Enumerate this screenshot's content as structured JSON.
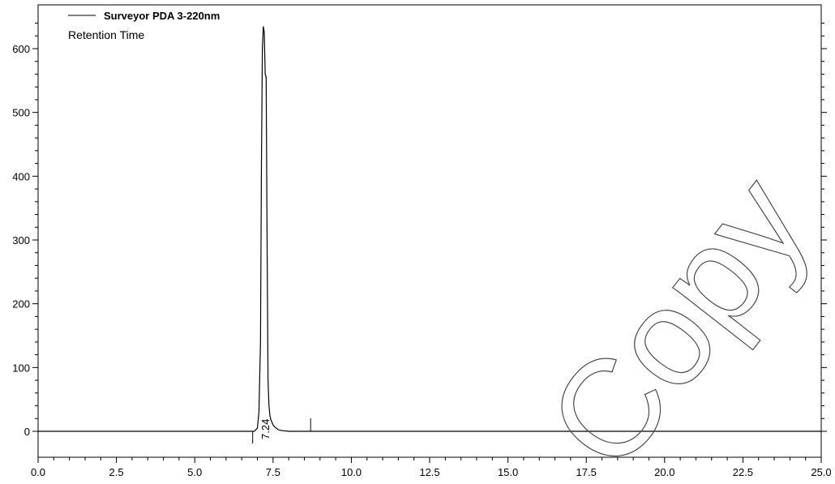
{
  "chart_data": {
    "type": "line",
    "title": "",
    "legend": {
      "entries": [
        "Surveyor PDA 3-220nm"
      ],
      "placement": "top-left"
    },
    "subtitle": "Retention Time",
    "xlabel": "",
    "ylabel": "",
    "xlim": [
      0.0,
      25.0
    ],
    "ylim": [
      -20,
      660
    ],
    "xticks": [
      0.0,
      2.5,
      5.0,
      7.5,
      10.0,
      12.5,
      15.0,
      17.5,
      20.0,
      22.5,
      25.0
    ],
    "xtick_labels": [
      "0.0",
      "2.5",
      "5.0",
      "7.5",
      "10.0",
      "12.5",
      "15.0",
      "17.5",
      "20.0",
      "22.5",
      "25.0"
    ],
    "yticks": [
      0,
      100,
      200,
      300,
      400,
      500,
      600
    ],
    "ytick_labels": [
      "0",
      "100",
      "200",
      "300",
      "400",
      "500",
      "600"
    ],
    "grid": false,
    "series": [
      {
        "name": "Surveyor PDA 3-220nm",
        "x": [
          0.0,
          6.9,
          7.0,
          7.05,
          7.1,
          7.13,
          7.16,
          7.19,
          7.22,
          7.25,
          7.28,
          7.31,
          7.34,
          7.37,
          7.4,
          7.43,
          7.46,
          7.5,
          7.55,
          7.6,
          7.65,
          7.7,
          7.8,
          8.0,
          25.0
        ],
        "y": [
          0,
          0,
          5,
          30,
          140,
          420,
          600,
          635,
          625,
          560,
          555,
          300,
          80,
          40,
          25,
          18,
          15,
          10,
          7,
          5,
          3,
          2,
          1,
          0,
          0
        ]
      }
    ],
    "annotations": [
      {
        "text": "7.24",
        "x": 7.24,
        "rotation": -90
      }
    ],
    "markers": [
      {
        "x": 6.85,
        "direction": "down"
      },
      {
        "x": 8.7,
        "direction": "up"
      }
    ],
    "watermark": "Copy"
  }
}
